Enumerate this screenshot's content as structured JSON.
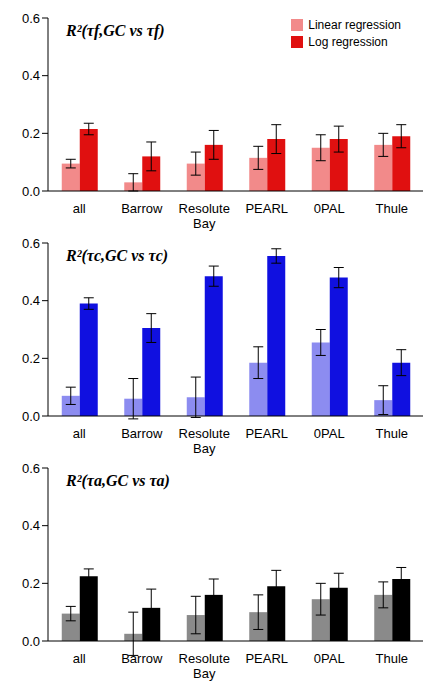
{
  "chart_data": [
    {
      "type": "bar",
      "title": "R²(τf,GC vs τf)",
      "categories": [
        "all",
        "Barrow",
        "Resolute Bay",
        "PEARL",
        "0PAL",
        "Thule"
      ],
      "ylim": [
        0,
        0.6
      ],
      "yticks": [
        {
          "value": 0,
          "label": "0.0"
        },
        0.2,
        0.4,
        0.6
      ],
      "grid": false,
      "legend": "upper right",
      "series": [
        {
          "name": "Linear regression",
          "color": "#f28a8a",
          "values": [
            0.095,
            0.03,
            0.095,
            0.115,
            0.15,
            0.16
          ],
          "errors": [
            0.015,
            0.03,
            0.04,
            0.04,
            0.045,
            0.04
          ]
        },
        {
          "name": "Log regression",
          "color": "#e01010",
          "values": [
            0.215,
            0.12,
            0.16,
            0.18,
            0.18,
            0.19
          ],
          "errors": [
            0.02,
            0.05,
            0.05,
            0.05,
            0.045,
            0.04
          ]
        }
      ]
    },
    {
      "type": "bar",
      "title": "R²(τc,GC vs τc)",
      "categories": [
        "all",
        "Barrow",
        "Resolute Bay",
        "PEARL",
        "0PAL",
        "Thule"
      ],
      "ylim": [
        0,
        0.6
      ],
      "yticks": [
        {
          "value": 0,
          "label": "0.0"
        },
        0.2,
        0.4,
        0.6
      ],
      "grid": false,
      "series": [
        {
          "color": "#8c8cf0",
          "values": [
            0.07,
            0.06,
            0.065,
            0.185,
            0.255,
            0.055
          ],
          "errors": [
            0.03,
            0.07,
            0.07,
            0.055,
            0.045,
            0.05
          ]
        },
        {
          "color": "#1010e0",
          "values": [
            0.39,
            0.305,
            0.485,
            0.555,
            0.48,
            0.185
          ],
          "errors": [
            0.02,
            0.05,
            0.035,
            0.025,
            0.035,
            0.045
          ]
        }
      ]
    },
    {
      "type": "bar",
      "title": "R²(τa,GC vs τa)",
      "categories": [
        "all",
        "Barrow",
        "Resolute Bay",
        "PEARL",
        "0PAL",
        "Thule"
      ],
      "ylim": [
        0,
        0.6
      ],
      "yticks": [
        {
          "value": 0,
          "label": "0.0"
        },
        0.2,
        0.4,
        0.6
      ],
      "grid": false,
      "series": [
        {
          "color": "#8a8a8a",
          "values": [
            0.095,
            0.025,
            0.09,
            0.1,
            0.145,
            0.16
          ],
          "errors": [
            0.025,
            0.075,
            0.065,
            0.06,
            0.055,
            0.045
          ]
        },
        {
          "color": "#000000",
          "values": [
            0.225,
            0.115,
            0.16,
            0.19,
            0.185,
            0.215
          ],
          "errors": [
            0.025,
            0.065,
            0.055,
            0.055,
            0.05,
            0.04
          ]
        }
      ]
    }
  ]
}
